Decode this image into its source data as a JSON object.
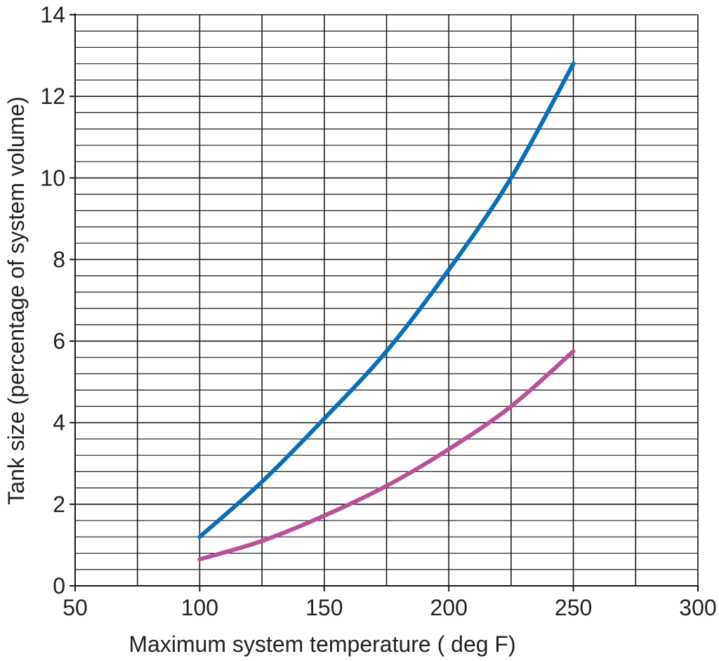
{
  "chart_data": {
    "type": "line",
    "title": "",
    "xlabel": "Maximum system temperature ( deg F)",
    "ylabel": "Tank size (percentage of system volume)",
    "xlim": [
      50,
      300
    ],
    "ylim": [
      0,
      14
    ],
    "xticks": [
      50,
      100,
      150,
      200,
      250,
      300
    ],
    "yticks": [
      0,
      2,
      4,
      6,
      8,
      10,
      12,
      14
    ],
    "x_minor_step": 25,
    "y_minor_step": 0.4,
    "grid": true,
    "legend": "none",
    "series": [
      {
        "color": "#0a6eb5",
        "points": [
          [
            100,
            1.2
          ],
          [
            125,
            2.55
          ],
          [
            150,
            4.1
          ],
          [
            175,
            5.75
          ],
          [
            200,
            7.75
          ],
          [
            225,
            10.0
          ],
          [
            250,
            12.8
          ]
        ]
      },
      {
        "color": "#b8509b",
        "points": [
          [
            100,
            0.65
          ],
          [
            125,
            1.1
          ],
          [
            150,
            1.72
          ],
          [
            175,
            2.45
          ],
          [
            200,
            3.35
          ],
          [
            225,
            4.4
          ],
          [
            250,
            5.75
          ]
        ]
      }
    ]
  }
}
